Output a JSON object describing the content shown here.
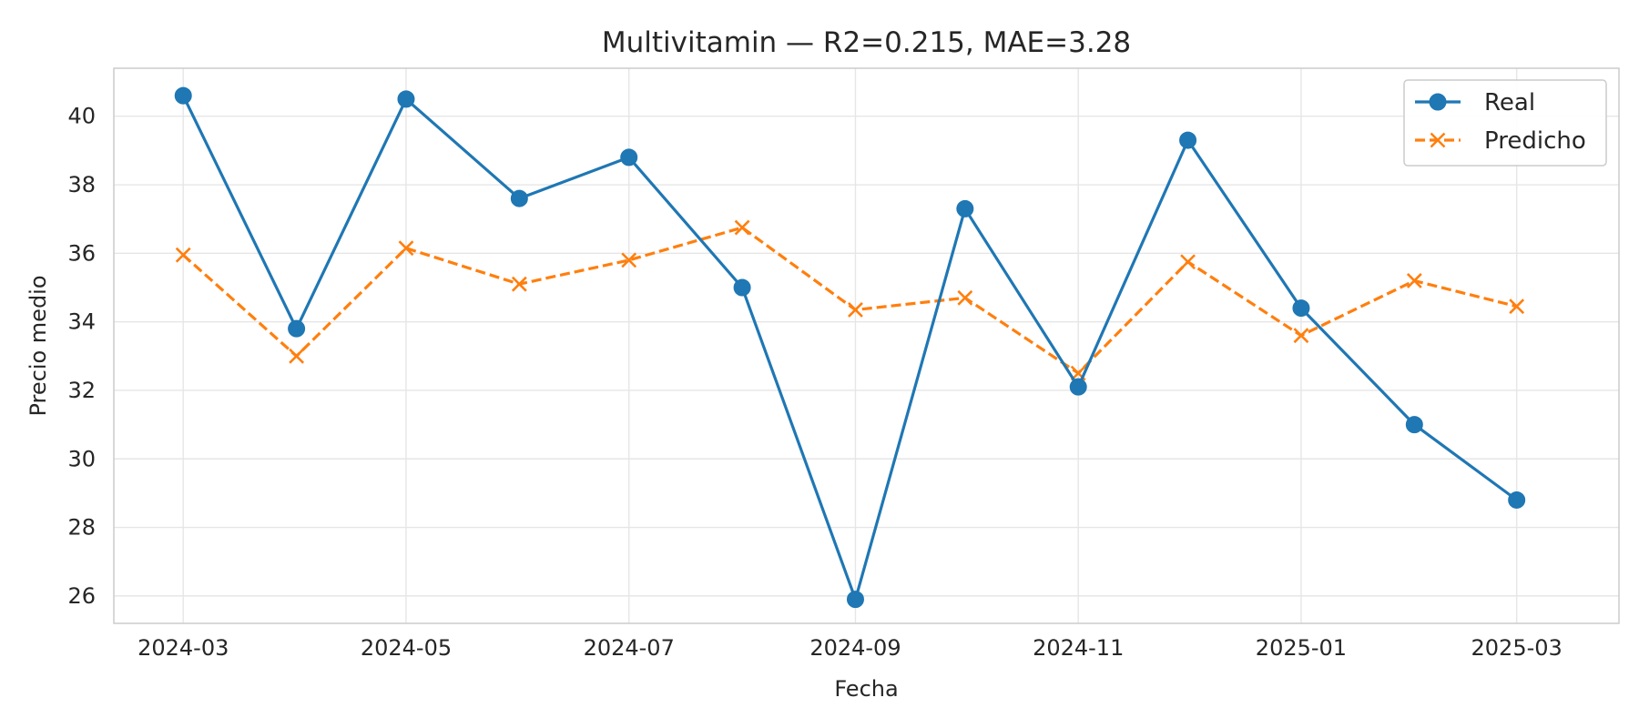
{
  "chart_data": {
    "type": "line",
    "title": "Multivitamin — R2=0.215, MAE=3.28",
    "xlabel": "Fecha",
    "ylabel": "Precio medio",
    "x": [
      "2024-03-01",
      "2024-04-01",
      "2024-05-01",
      "2024-06-01",
      "2024-07-01",
      "2024-08-01",
      "2024-09-01",
      "2024-10-01",
      "2024-11-01",
      "2024-12-01",
      "2025-01-01",
      "2025-02-01",
      "2025-03-01"
    ],
    "xticks": [
      "2024-03",
      "2024-05",
      "2024-07",
      "2024-09",
      "2024-11",
      "2025-01",
      "2025-03"
    ],
    "xtick_dates": [
      "2024-03-01",
      "2024-05-01",
      "2024-07-01",
      "2024-09-01",
      "2024-11-01",
      "2025-01-01",
      "2025-03-01"
    ],
    "yticks": [
      26,
      28,
      30,
      32,
      34,
      36,
      38,
      40
    ],
    "xlim": [
      "2024-02-11",
      "2025-03-29"
    ],
    "ylim": [
      25.2,
      41.4
    ],
    "grid": true,
    "legend_position": "top-right",
    "series": [
      {
        "name": "Real",
        "color": "#1f77b4",
        "marker": "circle",
        "linestyle": "solid",
        "values": [
          40.6,
          33.8,
          40.5,
          37.6,
          38.8,
          35.0,
          25.9,
          37.3,
          32.1,
          39.3,
          34.4,
          31.0,
          28.8
        ]
      },
      {
        "name": "Predicho",
        "color": "#ff7f0e",
        "marker": "x",
        "linestyle": "dashed",
        "values": [
          35.95,
          33.0,
          36.15,
          35.1,
          35.8,
          36.75,
          34.35,
          34.7,
          32.5,
          35.75,
          33.6,
          35.2,
          34.45
        ]
      }
    ]
  }
}
